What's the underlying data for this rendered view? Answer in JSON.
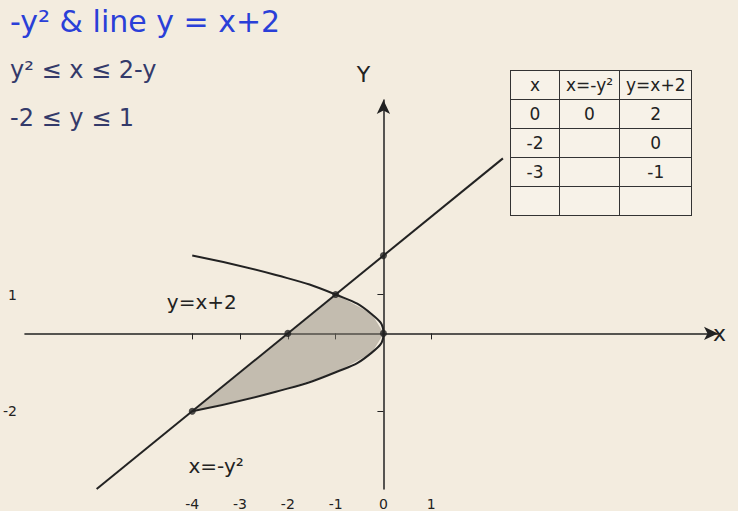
{
  "chart_data": {
    "type": "line",
    "title": "-y² & line y = x+2",
    "annotations": [
      "y² ≤ x ≤ 2-y",
      "-2 ≤ y ≤ 1",
      "y=x+2",
      "x=-y²"
    ],
    "xlabel": "x",
    "ylabel": "Y",
    "xlim": [
      -7.5,
      7
    ],
    "ylim": [
      -4,
      6
    ],
    "xticks": [
      -4,
      -3,
      -2,
      -1,
      0,
      1
    ],
    "yticks": [
      -2,
      1
    ],
    "grid": false,
    "series": [
      {
        "type": "line",
        "color": "#222222",
        "marker": "none",
        "x": [
          -6,
          2.5
        ],
        "values": [
          -4,
          4.5
        ]
      },
      {
        "type": "line",
        "color": "#222222",
        "marker": "none",
        "x": [
          -4,
          -2.25,
          -1,
          -0.25,
          0,
          -0.25,
          -1,
          -2.25,
          -4
        ],
        "values": [
          2,
          1.5,
          1,
          0.5,
          0,
          -0.5,
          -1,
          -1.5,
          -2
        ]
      },
      {
        "type": "area",
        "color": "#8a8275",
        "x": [
          -4,
          -1,
          -0.25,
          0,
          -0.25,
          -1,
          -2.25,
          -4
        ],
        "values": [
          -2,
          1,
          0.5,
          0,
          -0.5,
          -1,
          -1.5,
          -2
        ]
      },
      {
        "type": "scatter",
        "color": "#222222",
        "marker": "circle",
        "x": [
          -4,
          -2,
          -1,
          0,
          0
        ],
        "values": [
          -2,
          0,
          1,
          0,
          2
        ]
      }
    ],
    "table": {
      "header": [
        "x",
        "x=-y²",
        "y=x+2"
      ],
      "rows": [
        [
          0,
          0,
          2
        ],
        [
          -2,
          null,
          0
        ],
        [
          -3,
          null,
          -1
        ],
        [
          null,
          null,
          null
        ]
      ]
    }
  }
}
